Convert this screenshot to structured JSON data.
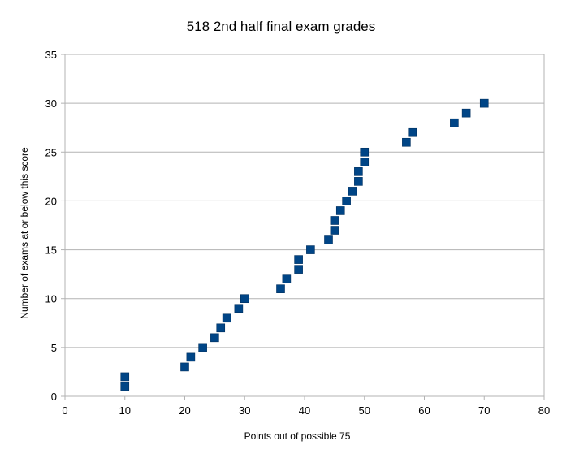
{
  "chart_data": {
    "type": "scatter",
    "title": "518 2nd half final exam grades",
    "xlabel": "Points out of possible 75",
    "ylabel": "Number of exams at or below this score",
    "xlim": [
      0,
      80
    ],
    "ylim": [
      0,
      35
    ],
    "xticks": [
      0,
      10,
      20,
      30,
      40,
      50,
      60,
      70,
      80
    ],
    "yticks": [
      0,
      5,
      10,
      15,
      20,
      25,
      30,
      35
    ],
    "grid": true,
    "legend": "none",
    "marker": "square",
    "series_color": "#004586",
    "points": [
      {
        "x": 10,
        "y": 1
      },
      {
        "x": 10,
        "y": 2
      },
      {
        "x": 20,
        "y": 3
      },
      {
        "x": 21,
        "y": 4
      },
      {
        "x": 23,
        "y": 5
      },
      {
        "x": 25,
        "y": 6
      },
      {
        "x": 26,
        "y": 7
      },
      {
        "x": 27,
        "y": 8
      },
      {
        "x": 29,
        "y": 9
      },
      {
        "x": 30,
        "y": 10
      },
      {
        "x": 36,
        "y": 11
      },
      {
        "x": 37,
        "y": 12
      },
      {
        "x": 39,
        "y": 13
      },
      {
        "x": 39,
        "y": 14
      },
      {
        "x": 41,
        "y": 15
      },
      {
        "x": 44,
        "y": 16
      },
      {
        "x": 45,
        "y": 17
      },
      {
        "x": 45,
        "y": 18
      },
      {
        "x": 46,
        "y": 19
      },
      {
        "x": 47,
        "y": 20
      },
      {
        "x": 48,
        "y": 21
      },
      {
        "x": 49,
        "y": 22
      },
      {
        "x": 49,
        "y": 23
      },
      {
        "x": 50,
        "y": 24
      },
      {
        "x": 50,
        "y": 25
      },
      {
        "x": 57,
        "y": 26
      },
      {
        "x": 58,
        "y": 27
      },
      {
        "x": 65,
        "y": 28
      },
      {
        "x": 67,
        "y": 29
      },
      {
        "x": 70,
        "y": 30
      }
    ]
  }
}
